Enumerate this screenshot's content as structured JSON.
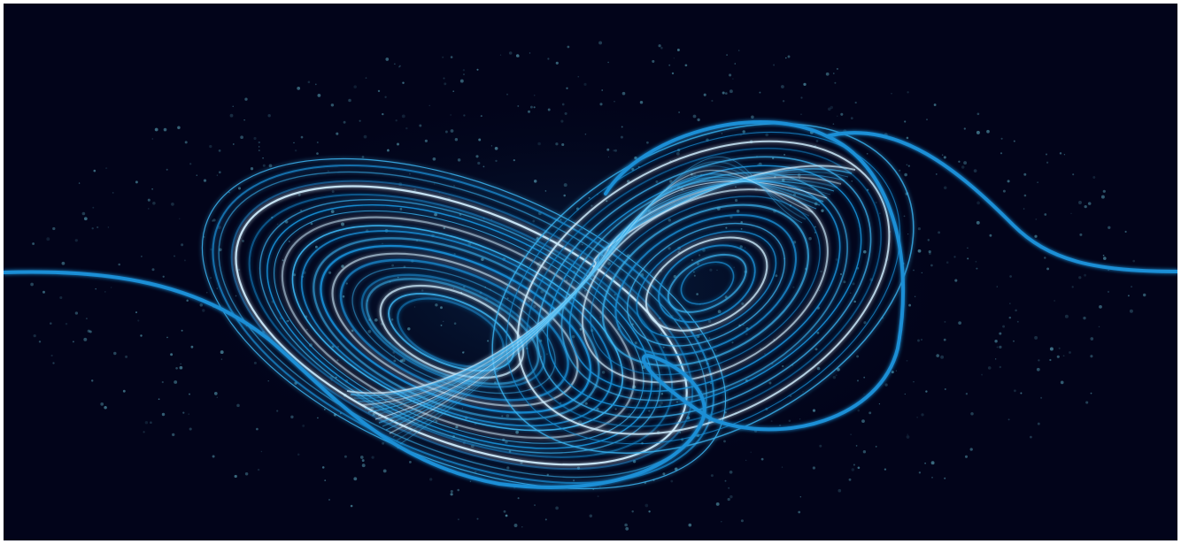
{
  "image": {
    "subject": "lorenz-attractor-illustration",
    "colors": {
      "background": "#02041a",
      "frame": "#ffffff",
      "curve": "#1a8fd6",
      "glow": "#3ab4f2",
      "highlight": "#cfeeff",
      "particles": "#5aa3b8",
      "cut_heading": "#1d3fe0"
    }
  },
  "cut_heading": {
    "text": ""
  }
}
